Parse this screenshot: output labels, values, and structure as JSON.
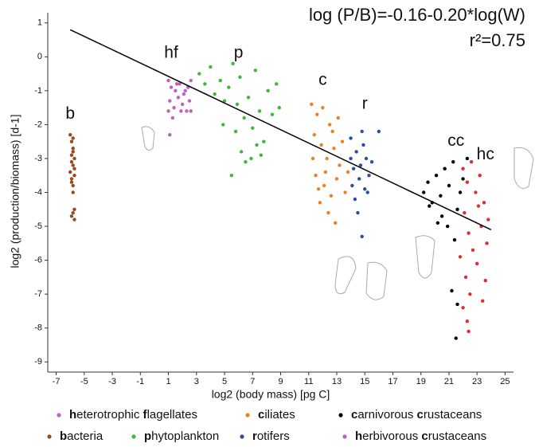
{
  "chart_data": {
    "type": "scatter",
    "equation": "log (P/B)=-0.16-0.20*log(W)",
    "r_squared": "r²=0.75",
    "x_label": "log2 (body mass) [pg C]",
    "y_label": "log2 (production/biomass) [d-1]",
    "xlim": [
      -7.6,
      25.6
    ],
    "ylim": [
      -9.3,
      1.3
    ],
    "xticks": [
      -7,
      -5,
      -3,
      -1,
      1,
      3,
      5,
      7,
      9,
      11,
      13,
      15,
      17,
      19,
      21,
      23,
      25
    ],
    "yticks": [
      1,
      0,
      -1,
      -2,
      -3,
      -4,
      -5,
      -6,
      -7,
      -8,
      -9
    ],
    "fit_line": {
      "color": "#000000",
      "x": [
        -6,
        24
      ],
      "y": [
        0.8,
        -5.1
      ]
    },
    "annotations": [
      {
        "text": "b",
        "x": -6,
        "y": -1.7
      },
      {
        "text": "hf",
        "x": 1.2,
        "y": 0.1
      },
      {
        "text": "p",
        "x": 6,
        "y": 0.1
      },
      {
        "text": "c",
        "x": 12,
        "y": -0.7
      },
      {
        "text": "r",
        "x": 15,
        "y": -1.4
      },
      {
        "text": "cc",
        "x": 21.5,
        "y": -2.5
      },
      {
        "text": "hc",
        "x": 23.6,
        "y": -2.9
      }
    ],
    "series": [
      {
        "name": "heterotrophic flagellates",
        "color": "#c060c0",
        "x": [
          1,
          1.2,
          1.5,
          1.8,
          2.1,
          2.4,
          2.6,
          1.1,
          1.4,
          1.7,
          2.0,
          2.3,
          2.5,
          1.0,
          1.3,
          1.1,
          2.2,
          1.9,
          2.6,
          1.6
        ],
        "y": [
          -0.7,
          -0.9,
          -1.0,
          -0.8,
          -1.1,
          -0.9,
          -0.7,
          -1.3,
          -1.5,
          -1.2,
          -1.4,
          -1.6,
          -1.3,
          -1.6,
          -1.8,
          -2.3,
          -1.0,
          -1.6,
          -1.6,
          -0.8
        ]
      },
      {
        "name": "ciliates",
        "color": "#e8822a",
        "x": [
          11.2,
          11.6,
          12,
          12.5,
          11.4,
          11.9,
          12.3,
          12.8,
          13.2,
          11.5,
          12.1,
          12.6,
          13.0,
          13.4,
          11.8,
          12.4,
          12.9,
          13.6,
          11.3,
          12.2,
          13.1,
          12.7,
          13.8,
          11.7
        ],
        "y": [
          -1.4,
          -1.7,
          -1.5,
          -2.0,
          -2.3,
          -2.6,
          -3.0,
          -2.7,
          -3.2,
          -3.5,
          -3.8,
          -4.1,
          -3.6,
          -2.5,
          -4.3,
          -4.6,
          -4.9,
          -4.0,
          -3.0,
          -3.4,
          -1.8,
          -2.2,
          -3.4,
          -3.9
        ]
      },
      {
        "name": "carnivorous crustaceans",
        "color": "#000000",
        "x": [
          19.2,
          19.5,
          19.8,
          20.1,
          20.4,
          20.7,
          21,
          21.3,
          21.6,
          22,
          22.3,
          20.5,
          20.9,
          21.4,
          21.2,
          21.6,
          21.5,
          20.2,
          21.8,
          19.6
        ],
        "y": [
          -4.0,
          -3.7,
          -4.3,
          -3.5,
          -4.1,
          -3.3,
          -3.8,
          -3.1,
          -4.5,
          -3.6,
          -3.0,
          -4.7,
          -5.0,
          -5.4,
          -6.9,
          -7.3,
          -8.3,
          -4.9,
          -4.0,
          -4.4
        ]
      },
      {
        "name": "bacteria",
        "color": "#9a4a1e",
        "x": [
          -6.0,
          -5.9,
          -5.8,
          -5.9,
          -5.7,
          -5.8,
          -6.0,
          -5.9,
          -5.7,
          -5.8,
          -5.9,
          -5.8,
          -5.7,
          -5.9,
          -5.8,
          -5.7,
          -5.8,
          -5.9,
          -5.7,
          -5.8
        ],
        "y": [
          -2.3,
          -2.5,
          -2.7,
          -2.9,
          -3.0,
          -3.2,
          -3.4,
          -3.6,
          -3.5,
          -3.8,
          -3.1,
          -2.8,
          -3.3,
          -3.7,
          -4.0,
          -4.5,
          -4.6,
          -4.7,
          -4.8,
          -2.4
        ]
      },
      {
        "name": "phytoplankton",
        "color": "#3cb93c",
        "x": [
          3.2,
          3.6,
          4,
          4.3,
          4.7,
          5,
          5.3,
          5.6,
          5.9,
          6.1,
          6.4,
          6.7,
          7,
          7.2,
          7.5,
          7.8,
          8.1,
          8.4,
          8.7,
          5.8,
          6.2,
          5.5,
          6.9,
          7.3,
          6.5,
          4.9,
          8.9,
          7.6
        ],
        "y": [
          -0.5,
          -0.8,
          -0.3,
          -1.1,
          -0.7,
          -1.3,
          -0.9,
          -0.2,
          -1.4,
          -0.6,
          -1.8,
          -1.2,
          -2.1,
          -0.4,
          -1.6,
          -2.5,
          -1.0,
          -1.7,
          -0.8,
          -2.2,
          -2.8,
          -3.5,
          -3.0,
          -2.6,
          -3.1,
          -2.0,
          -1.5,
          -2.9
        ]
      },
      {
        "name": "rotifers",
        "color": "#2c4fa0",
        "x": [
          14,
          14.4,
          14.8,
          15.1,
          14.2,
          14.6,
          15.0,
          14.3,
          14.7,
          15.3,
          14.1,
          14.9,
          15.5,
          14.5,
          14.8,
          16,
          14.0,
          15.2
        ],
        "y": [
          -2.4,
          -2.8,
          -2.2,
          -3.0,
          -3.3,
          -3.6,
          -3.9,
          -4.2,
          -3.2,
          -3.5,
          -3.8,
          -2.6,
          -3.1,
          -4.6,
          -5.3,
          -2.2,
          -3.0,
          -4.0
        ]
      },
      {
        "name": "herbivorous crustaceans",
        "color": "#e02c2c",
        "legend_color": "#c060c0",
        "x": [
          22,
          22.3,
          22.6,
          22.9,
          23.2,
          23.5,
          23.8,
          22.1,
          22.4,
          22.7,
          23.0,
          23.3,
          23.6,
          22.2,
          22.5,
          22.0,
          22.3,
          22.4,
          21.8,
          23.4,
          23.7,
          23.1
        ],
        "y": [
          -3.3,
          -3.7,
          -3.1,
          -4.0,
          -3.5,
          -4.3,
          -4.8,
          -4.6,
          -5.2,
          -5.7,
          -6.1,
          -5.0,
          -6.6,
          -6.5,
          -7.0,
          -7.4,
          -7.8,
          -8.1,
          -5.9,
          -7.2,
          -5.5,
          -4.4
        ]
      }
    ]
  }
}
